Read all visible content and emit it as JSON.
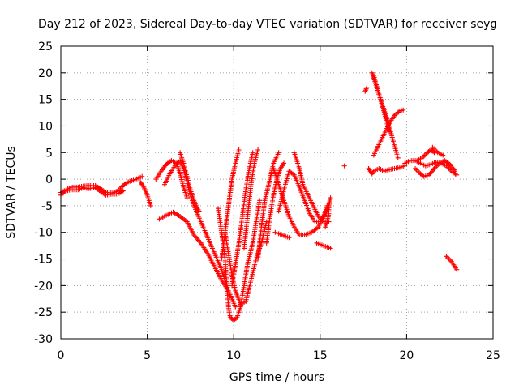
{
  "chart_data": {
    "type": "scatter",
    "title": "Day 212 of 2023, Sidereal Day-to-day VTEC variation (SDTVAR) for receiver seyg",
    "xlabel": "GPS time / hours",
    "ylabel": "SDTVAR / TECUs",
    "xlim": [
      0,
      25
    ],
    "ylim": [
      -30,
      25
    ],
    "xticks": [
      0,
      5,
      10,
      15,
      20,
      25
    ],
    "yticks": [
      -30,
      -25,
      -20,
      -15,
      -10,
      -5,
      0,
      5,
      10,
      15,
      20,
      25
    ],
    "grid": true,
    "marker": "+",
    "color": "#ff0000",
    "series": [
      {
        "name": "base-0-4.6",
        "points": [
          [
            0,
            -2.5
          ],
          [
            0.3,
            -2
          ],
          [
            0.6,
            -1.5
          ],
          [
            1,
            -1.5
          ],
          [
            1.3,
            -1.3
          ],
          [
            1.6,
            -1.2
          ],
          [
            2,
            -1.2
          ],
          [
            2.3,
            -1.8
          ],
          [
            2.6,
            -2.5
          ],
          [
            3,
            -2.6
          ],
          [
            3.3,
            -2.2
          ],
          [
            3.6,
            -1.2
          ],
          [
            3.9,
            -0.5
          ],
          [
            4.2,
            -0.2
          ],
          [
            4.5,
            0.2
          ],
          [
            4.7,
            0.5
          ]
        ]
      },
      {
        "name": "base-0-3.4b",
        "points": [
          [
            0,
            -3
          ],
          [
            0.3,
            -2.2
          ],
          [
            0.6,
            -2
          ],
          [
            1,
            -2
          ],
          [
            1.3,
            -1.6
          ],
          [
            1.6,
            -1.8
          ],
          [
            2,
            -1.6
          ],
          [
            2.3,
            -2.3
          ],
          [
            2.6,
            -3
          ],
          [
            3,
            -2.8
          ],
          [
            3.3,
            -2.8
          ],
          [
            3.6,
            -2.2
          ]
        ]
      },
      {
        "name": "dip-4.6-5.2",
        "points": [
          [
            4.6,
            -0.5
          ],
          [
            4.8,
            -1.5
          ],
          [
            5,
            -3
          ],
          [
            5.2,
            -5
          ]
        ]
      },
      {
        "name": "bump-5.5-7.2",
        "points": [
          [
            5.5,
            0
          ],
          [
            5.8,
            1.5
          ],
          [
            6.1,
            2.8
          ],
          [
            6.4,
            3.5
          ],
          [
            6.7,
            3
          ],
          [
            6.9,
            1
          ],
          [
            7.1,
            -1.5
          ],
          [
            7.3,
            -3.5
          ]
        ]
      },
      {
        "name": "bump-6-7.3",
        "points": [
          [
            6,
            -1
          ],
          [
            6.3,
            1
          ],
          [
            6.6,
            2.5
          ],
          [
            6.9,
            3.5
          ],
          [
            7.1,
            2
          ],
          [
            7.3,
            -0.5
          ],
          [
            7.5,
            -3
          ],
          [
            7.7,
            -5
          ]
        ]
      },
      {
        "name": "bump-6.9-8",
        "points": [
          [
            6.9,
            5
          ],
          [
            7.1,
            3
          ],
          [
            7.3,
            0.5
          ],
          [
            7.5,
            -2
          ],
          [
            7.7,
            -4
          ],
          [
            7.9,
            -5.5
          ],
          [
            8,
            -6
          ]
        ]
      },
      {
        "name": "flat-5.7-7.3",
        "points": [
          [
            5.7,
            -7.5
          ],
          [
            6.1,
            -6.8
          ],
          [
            6.5,
            -6.2
          ],
          [
            6.9,
            -7
          ],
          [
            7.3,
            -8
          ]
        ]
      },
      {
        "name": "fall-7.3-9.6",
        "points": [
          [
            7.3,
            -8
          ],
          [
            7.7,
            -10.5
          ],
          [
            8.1,
            -12
          ],
          [
            8.5,
            -14
          ],
          [
            8.9,
            -16.5
          ],
          [
            9.3,
            -19
          ],
          [
            9.6,
            -20.5
          ]
        ]
      },
      {
        "name": "fall-7.7-10.1",
        "points": [
          [
            7.7,
            -5
          ],
          [
            8.1,
            -8
          ],
          [
            8.5,
            -11
          ],
          [
            8.9,
            -14
          ],
          [
            9.3,
            -17
          ],
          [
            9.7,
            -21
          ],
          [
            10.1,
            -24
          ]
        ]
      },
      {
        "name": "deep-v",
        "points": [
          [
            9.1,
            -5.5
          ],
          [
            9.3,
            -10
          ],
          [
            9.5,
            -15
          ],
          [
            9.6,
            -20
          ],
          [
            9.7,
            -24
          ],
          [
            9.8,
            -26
          ],
          [
            10,
            -26.5
          ],
          [
            10.2,
            -26
          ],
          [
            10.4,
            -24
          ],
          [
            10.6,
            -20
          ],
          [
            10.8,
            -16
          ],
          [
            11.1,
            -12
          ],
          [
            11.3,
            -8
          ],
          [
            11.5,
            -4
          ]
        ]
      },
      {
        "name": "v-two",
        "points": [
          [
            9.5,
            -10
          ],
          [
            9.7,
            -14
          ],
          [
            9.9,
            -18
          ],
          [
            10.1,
            -21
          ],
          [
            10.4,
            -23.5
          ],
          [
            10.7,
            -23
          ],
          [
            11,
            -19
          ],
          [
            11.3,
            -15
          ],
          [
            11.6,
            -12
          ],
          [
            11.9,
            -8
          ]
        ]
      },
      {
        "name": "rise-9.9-11.3",
        "points": [
          [
            9.9,
            -20
          ],
          [
            10.1,
            -16
          ],
          [
            10.3,
            -12
          ],
          [
            10.5,
            -7
          ],
          [
            10.7,
            -2
          ],
          [
            10.9,
            2
          ],
          [
            11.1,
            5
          ]
        ]
      },
      {
        "name": "rise-9.3-10.5",
        "points": [
          [
            9.3,
            -15
          ],
          [
            9.5,
            -10
          ],
          [
            9.7,
            -5
          ],
          [
            9.9,
            0
          ],
          [
            10.1,
            3
          ],
          [
            10.3,
            5.5
          ]
        ]
      },
      {
        "name": "rise-10.6-11.5",
        "points": [
          [
            10.6,
            -13
          ],
          [
            10.8,
            -7
          ],
          [
            11,
            -1
          ],
          [
            11.2,
            3
          ],
          [
            11.4,
            5.5
          ]
        ]
      },
      {
        "name": "rise-11.4-12.5",
        "points": [
          [
            11.4,
            -15
          ],
          [
            11.6,
            -9
          ],
          [
            11.8,
            -4
          ],
          [
            12.1,
            0
          ],
          [
            12.3,
            3
          ],
          [
            12.6,
            5
          ]
        ]
      },
      {
        "name": "rise-11.9-12.9",
        "points": [
          [
            11.9,
            -12
          ],
          [
            12.1,
            -7
          ],
          [
            12.3,
            -3
          ],
          [
            12.5,
            0
          ],
          [
            12.7,
            2
          ],
          [
            12.9,
            3
          ]
        ]
      },
      {
        "name": "v-three",
        "points": [
          [
            12.3,
            2
          ],
          [
            12.6,
            -1
          ],
          [
            12.9,
            -4
          ],
          [
            13.2,
            -7
          ],
          [
            13.5,
            -9
          ],
          [
            13.8,
            -10.5
          ],
          [
            14.1,
            -10.5
          ],
          [
            14.5,
            -10
          ],
          [
            14.9,
            -9
          ],
          [
            15.2,
            -7
          ],
          [
            15.4,
            -5
          ]
        ]
      },
      {
        "name": "arc-12.6-15.5",
        "points": [
          [
            12.6,
            -6
          ],
          [
            12.9,
            -2
          ],
          [
            13.2,
            1.5
          ],
          [
            13.5,
            0.8
          ],
          [
            13.8,
            -1.5
          ],
          [
            14.1,
            -4
          ],
          [
            14.4,
            -6.5
          ],
          [
            14.7,
            -8
          ],
          [
            15,
            -8
          ],
          [
            15.3,
            -6.5
          ],
          [
            15.5,
            -5
          ]
        ]
      },
      {
        "name": "arc-13.5-15.5",
        "points": [
          [
            13.5,
            5
          ],
          [
            13.8,
            2
          ],
          [
            14,
            -1
          ],
          [
            14.3,
            -3
          ],
          [
            14.6,
            -5
          ],
          [
            14.9,
            -7
          ],
          [
            15.2,
            -8
          ],
          [
            15.5,
            -8
          ]
        ]
      },
      {
        "name": "low-12.4-13.2",
        "points": [
          [
            12.4,
            -10
          ],
          [
            12.8,
            -10.5
          ],
          [
            13.2,
            -11
          ]
        ]
      },
      {
        "name": "tail-14.8-15.6",
        "points": [
          [
            14.8,
            -12
          ],
          [
            15.2,
            -12.5
          ],
          [
            15.6,
            -13
          ]
        ]
      },
      {
        "name": "vert-15.3",
        "points": [
          [
            15.3,
            -9
          ],
          [
            15.4,
            -8
          ],
          [
            15.5,
            -6.5
          ],
          [
            15.5,
            -5
          ],
          [
            15.6,
            -3.5
          ]
        ]
      },
      {
        "name": "dot-16.4",
        "points": [
          [
            16.4,
            2.5
          ]
        ]
      },
      {
        "name": "dot-17.7",
        "points": [
          [
            17.6,
            16.5
          ],
          [
            17.7,
            17.2
          ]
        ]
      },
      {
        "name": "cross-a",
        "points": [
          [
            18,
            20
          ],
          [
            18.3,
            17
          ],
          [
            18.6,
            14
          ],
          [
            18.9,
            11
          ],
          [
            19.2,
            7.5
          ],
          [
            19.5,
            4
          ]
        ]
      },
      {
        "name": "cross-b",
        "points": [
          [
            18.1,
            19.5
          ],
          [
            18.4,
            16
          ],
          [
            18.7,
            12.5
          ],
          [
            19,
            9
          ]
        ]
      },
      {
        "name": "cross-c",
        "points": [
          [
            18.1,
            4.5
          ],
          [
            18.4,
            6.5
          ],
          [
            18.7,
            8.5
          ],
          [
            19,
            10.5
          ],
          [
            19.3,
            12
          ],
          [
            19.6,
            12.8
          ],
          [
            19.8,
            13
          ]
        ]
      },
      {
        "name": "base-18-20",
        "points": [
          [
            17.8,
            2
          ],
          [
            18,
            1
          ],
          [
            18.1,
            1.5
          ],
          [
            18.4,
            2
          ],
          [
            18.7,
            1.5
          ],
          [
            19,
            1.8
          ],
          [
            19.3,
            2
          ],
          [
            19.6,
            2.2
          ],
          [
            19.9,
            2.5
          ]
        ]
      },
      {
        "name": "wave-20-22.9",
        "points": [
          [
            19.9,
            3
          ],
          [
            20.2,
            3.5
          ],
          [
            20.5,
            3.5
          ],
          [
            20.8,
            3
          ],
          [
            21.1,
            2.5
          ],
          [
            21.4,
            2.8
          ],
          [
            21.7,
            3.2
          ],
          [
            22,
            3
          ],
          [
            22.3,
            2.5
          ],
          [
            22.6,
            1.5
          ],
          [
            22.9,
            0.8
          ]
        ]
      },
      {
        "name": "wave-20.5-22.9",
        "points": [
          [
            20.5,
            2
          ],
          [
            20.8,
            1
          ],
          [
            21,
            0.5
          ],
          [
            21.3,
            0.8
          ],
          [
            21.6,
            2
          ],
          [
            21.9,
            3
          ],
          [
            22.2,
            3.5
          ],
          [
            22.5,
            2.8
          ],
          [
            22.8,
            1.5
          ]
        ]
      },
      {
        "name": "seg-20.6-21.6",
        "points": [
          [
            20.6,
            3.5
          ],
          [
            20.9,
            4
          ],
          [
            21.2,
            5
          ],
          [
            21.4,
            5.5
          ],
          [
            21.6,
            5
          ]
        ]
      },
      {
        "name": "seg-21.5-22.2",
        "points": [
          [
            21.5,
            6
          ],
          [
            21.8,
            5
          ],
          [
            22.1,
            4.5
          ]
        ]
      },
      {
        "name": "tail-22.3-22.9",
        "points": [
          [
            22.3,
            -14.5
          ],
          [
            22.6,
            -15.5
          ],
          [
            22.9,
            -17
          ]
        ]
      }
    ]
  }
}
